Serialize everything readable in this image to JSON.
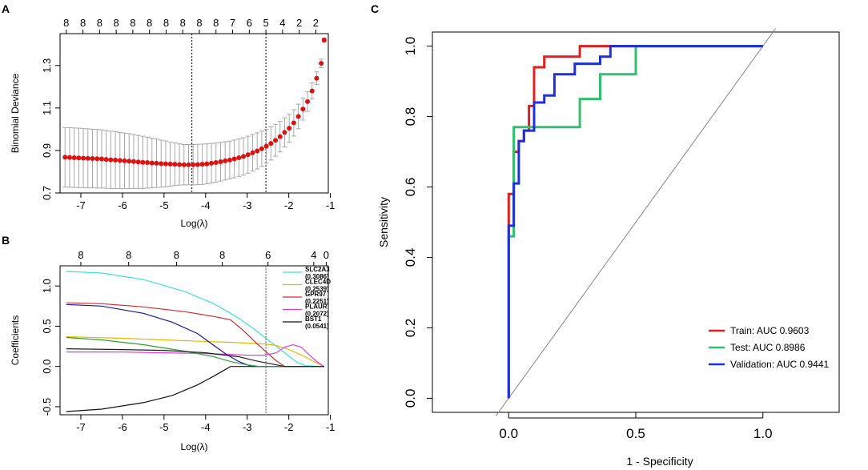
{
  "chart_data": [
    {
      "panel": "A",
      "type": "scatter",
      "title": "",
      "xlabel": "Log(λ)",
      "ylabel": "Binomial Deviance",
      "xlim": [
        -7.5,
        -1.05
      ],
      "ylim": [
        0.7,
        1.45
      ],
      "xticks": [
        -7,
        -6,
        -5,
        -4,
        -3,
        -2,
        -1
      ],
      "yticks": [
        0.7,
        0.9,
        1.1,
        1.3
      ],
      "top_axis": {
        "positions": [
          -7.35,
          -6.95,
          -6.55,
          -6.15,
          -5.75,
          -5.35,
          -4.95,
          -4.55,
          -4.15,
          -3.75,
          -3.35,
          -2.95,
          -2.55,
          -2.15,
          -1.75,
          -1.35
        ],
        "labels": [
          "8",
          "8",
          "8",
          "8",
          "8",
          "8",
          "8",
          "8",
          "8",
          "8",
          "7",
          "6",
          "5",
          "4",
          "2",
          "2"
        ]
      },
      "vlines": [
        -4.33,
        -2.55
      ],
      "series": {
        "name": "deviance",
        "x": [
          -7.38,
          -7.27,
          -7.16,
          -7.05,
          -6.94,
          -6.83,
          -6.72,
          -6.61,
          -6.5,
          -6.39,
          -6.28,
          -6.17,
          -6.06,
          -5.95,
          -5.84,
          -5.73,
          -5.62,
          -5.51,
          -5.4,
          -5.29,
          -5.18,
          -5.07,
          -4.96,
          -4.85,
          -4.74,
          -4.63,
          -4.52,
          -4.41,
          -4.3,
          -4.19,
          -4.08,
          -3.97,
          -3.86,
          -3.75,
          -3.64,
          -3.53,
          -3.42,
          -3.31,
          -3.2,
          -3.09,
          -2.98,
          -2.87,
          -2.76,
          -2.65,
          -2.54,
          -2.43,
          -2.32,
          -2.21,
          -2.1,
          -1.99,
          -1.88,
          -1.77,
          -1.66,
          -1.55,
          -1.44,
          -1.33,
          -1.22,
          -1.15
        ],
        "y": [
          0.868,
          0.867,
          0.866,
          0.865,
          0.864,
          0.863,
          0.862,
          0.861,
          0.86,
          0.858,
          0.856,
          0.855,
          0.853,
          0.851,
          0.85,
          0.848,
          0.846,
          0.844,
          0.843,
          0.841,
          0.84,
          0.838,
          0.837,
          0.836,
          0.835,
          0.834,
          0.833,
          0.833,
          0.833,
          0.834,
          0.835,
          0.837,
          0.84,
          0.843,
          0.847,
          0.851,
          0.855,
          0.86,
          0.866,
          0.872,
          0.88,
          0.889,
          0.898,
          0.908,
          0.92,
          0.933,
          0.948,
          0.965,
          0.985,
          1.005,
          1.03,
          1.06,
          1.095,
          1.13,
          1.18,
          1.24,
          1.31,
          1.42
        ],
        "err": [
          0.14,
          0.14,
          0.14,
          0.14,
          0.139,
          0.139,
          0.138,
          0.138,
          0.137,
          0.136,
          0.135,
          0.134,
          0.132,
          0.131,
          0.129,
          0.127,
          0.125,
          0.123,
          0.12,
          0.117,
          0.114,
          0.111,
          0.108,
          0.104,
          0.1,
          0.097,
          0.095,
          0.095,
          0.095,
          0.095,
          0.095,
          0.094,
          0.093,
          0.092,
          0.091,
          0.09,
          0.089,
          0.089,
          0.088,
          0.088,
          0.087,
          0.086,
          0.085,
          0.083,
          0.08,
          0.078,
          0.075,
          0.072,
          0.069,
          0.066,
          0.062,
          0.058,
          0.052,
          0.046,
          0.038,
          0.03,
          0.02,
          0.01
        ]
      }
    },
    {
      "panel": "B",
      "type": "line",
      "title": "",
      "xlabel": "Log(λ)",
      "ylabel": "Coefficients",
      "xlim": [
        -7.5,
        -1.05
      ],
      "ylim": [
        -0.6,
        1.25
      ],
      "xticks": [
        -7,
        -6,
        -5,
        -4,
        -3,
        -2,
        -1
      ],
      "yticks": [
        -0.5,
        0.0,
        0.5,
        1.0
      ],
      "top_axis": {
        "positions": [
          -7.0,
          -5.85,
          -4.7,
          -3.6,
          -2.5,
          -1.4,
          -1.1
        ],
        "labels": [
          "8",
          "8",
          "8",
          "8",
          "6",
          "4",
          "0"
        ]
      },
      "vlines": [
        -2.55
      ],
      "series": [
        {
          "name": "SLC2A3",
          "value": "(0.3086)",
          "color": "#40e0e0",
          "x": [
            -7.35,
            -6.5,
            -5.5,
            -4.5,
            -3.8,
            -3.3,
            -2.9,
            -2.6,
            -2.3,
            -2.0,
            -1.8,
            -1.6,
            -1.15
          ],
          "y": [
            1.18,
            1.16,
            1.08,
            0.93,
            0.78,
            0.63,
            0.49,
            0.37,
            0.25,
            0.13,
            0.05,
            0.01,
            0.0
          ]
        },
        {
          "name": "CLEC4D",
          "value": "(0.2539)",
          "color": "#e8b800",
          "x": [
            -7.35,
            -6.0,
            -5.0,
            -4.0,
            -3.4,
            -3.0,
            -2.6,
            -2.3,
            -2.0,
            -1.6,
            -1.4,
            -1.15
          ],
          "y": [
            0.37,
            0.35,
            0.33,
            0.31,
            0.3,
            0.29,
            0.28,
            0.26,
            0.21,
            0.12,
            0.06,
            0.0
          ]
        },
        {
          "name": "GPR97",
          "value": "(0.2251)",
          "color": "#c83030",
          "x": [
            -7.35,
            -6.5,
            -5.5,
            -4.5,
            -3.8,
            -3.4,
            -3.1,
            -2.8,
            -2.5,
            -2.3,
            -2.1,
            -1.15
          ],
          "y": [
            0.79,
            0.78,
            0.74,
            0.68,
            0.62,
            0.58,
            0.45,
            0.3,
            0.16,
            0.07,
            0.0,
            0.0
          ]
        },
        {
          "name": "PLAUR",
          "value": "(0.2072)",
          "color": "#e040e0",
          "x": [
            -7.35,
            -6.0,
            -5.0,
            -4.0,
            -3.4,
            -3.0,
            -2.6,
            -2.3,
            -2.1,
            -1.9,
            -1.7,
            -1.5,
            -1.3,
            -1.15
          ],
          "y": [
            0.18,
            0.18,
            0.17,
            0.16,
            0.15,
            0.14,
            0.14,
            0.17,
            0.24,
            0.27,
            0.24,
            0.14,
            0.05,
            0.0
          ]
        },
        {
          "name": "BST1",
          "value": "(0.0541)",
          "color": "#111111",
          "x": [
            -7.35,
            -6.5,
            -5.5,
            -4.8,
            -4.2,
            -3.8,
            -3.6,
            -3.4,
            -1.15
          ],
          "y": [
            -0.56,
            -0.53,
            -0.45,
            -0.36,
            -0.23,
            -0.12,
            -0.06,
            0.0,
            0.0
          ]
        },
        {
          "name": "",
          "value": "",
          "color": "#1a1aa0",
          "x": [
            -7.35,
            -6.5,
            -5.5,
            -4.8,
            -4.2,
            -3.8,
            -3.5,
            -3.2,
            -2.9,
            -2.7,
            -1.15
          ],
          "y": [
            0.77,
            0.75,
            0.66,
            0.55,
            0.41,
            0.26,
            0.15,
            0.06,
            0.0,
            0.0,
            0.0
          ]
        },
        {
          "name": "",
          "value": "",
          "color": "#30a030",
          "x": [
            -7.35,
            -6.5,
            -5.5,
            -4.5,
            -3.8,
            -3.4,
            -3.0,
            -2.7,
            -2.5,
            -1.15
          ],
          "y": [
            0.36,
            0.33,
            0.27,
            0.19,
            0.12,
            0.06,
            0.02,
            0.0,
            0.0,
            0.0
          ]
        },
        {
          "name": "",
          "value": "",
          "color": "#202020",
          "x": [
            -7.35,
            -6.0,
            -5.0,
            -4.0,
            -3.2,
            -2.8,
            -2.4,
            -2.1,
            -1.15
          ],
          "y": [
            0.22,
            0.21,
            0.2,
            0.17,
            0.12,
            0.07,
            0.03,
            0.0,
            0.0
          ]
        }
      ]
    },
    {
      "panel": "C",
      "type": "line",
      "title": "",
      "xlabel": "1 - Specificity",
      "ylabel": "Sensitivity",
      "xlim": [
        -0.3,
        1.3
      ],
      "ylim": [
        -0.04,
        1.04
      ],
      "xticks": [
        0.0,
        0.5,
        1.0
      ],
      "xticklabels": [
        "0.0",
        "0.5",
        "1.0"
      ],
      "yticks": [
        0.0,
        0.2,
        0.4,
        0.6,
        0.8,
        1.0
      ],
      "yticklabels": [
        "0.0",
        "0.2",
        "0.4",
        "0.6",
        "0.8",
        "1.0"
      ],
      "diagonal": [
        [
          -0.05,
          -0.05
        ],
        [
          1.05,
          1.05
        ]
      ],
      "series": [
        {
          "name": "Train",
          "auc_label": "Train: AUC 0.9603",
          "color": "#e02020",
          "x": [
            0,
            0,
            0.02,
            0.02,
            0.04,
            0.04,
            0.06,
            0.06,
            0.08,
            0.08,
            0.1,
            0.1,
            0.14,
            0.14,
            0.28,
            0.28,
            1.0
          ],
          "y": [
            0,
            0.58,
            0.58,
            0.7,
            0.7,
            0.73,
            0.73,
            0.76,
            0.76,
            0.83,
            0.83,
            0.94,
            0.94,
            0.97,
            0.97,
            1.0,
            1.0
          ]
        },
        {
          "name": "Test",
          "auc_label": "Test: AUC 0.8986",
          "color": "#30c070",
          "x": [
            0,
            0,
            0.02,
            0.02,
            0.04,
            0.04,
            0.06,
            0.06,
            0.28,
            0.28,
            0.36,
            0.36,
            0.5,
            0.5,
            1.0
          ],
          "y": [
            0,
            0.46,
            0.46,
            0.77,
            0.77,
            0.77,
            0.77,
            0.77,
            0.77,
            0.85,
            0.85,
            0.92,
            0.92,
            1.0,
            1.0
          ]
        },
        {
          "name": "Validation",
          "auc_label": "Validation:  AUC 0.9441",
          "color": "#1e30d8",
          "x": [
            0,
            0,
            0.02,
            0.02,
            0.04,
            0.04,
            0.06,
            0.06,
            0.1,
            0.1,
            0.14,
            0.14,
            0.18,
            0.18,
            0.26,
            0.26,
            0.36,
            0.36,
            0.4,
            0.4,
            1.0
          ],
          "y": [
            0,
            0.49,
            0.49,
            0.61,
            0.61,
            0.73,
            0.73,
            0.76,
            0.76,
            0.84,
            0.84,
            0.86,
            0.86,
            0.92,
            0.92,
            0.95,
            0.95,
            0.97,
            0.97,
            1.0,
            1.0
          ]
        }
      ]
    }
  ],
  "panels": {
    "a": "A",
    "b": "B",
    "c": "C"
  }
}
